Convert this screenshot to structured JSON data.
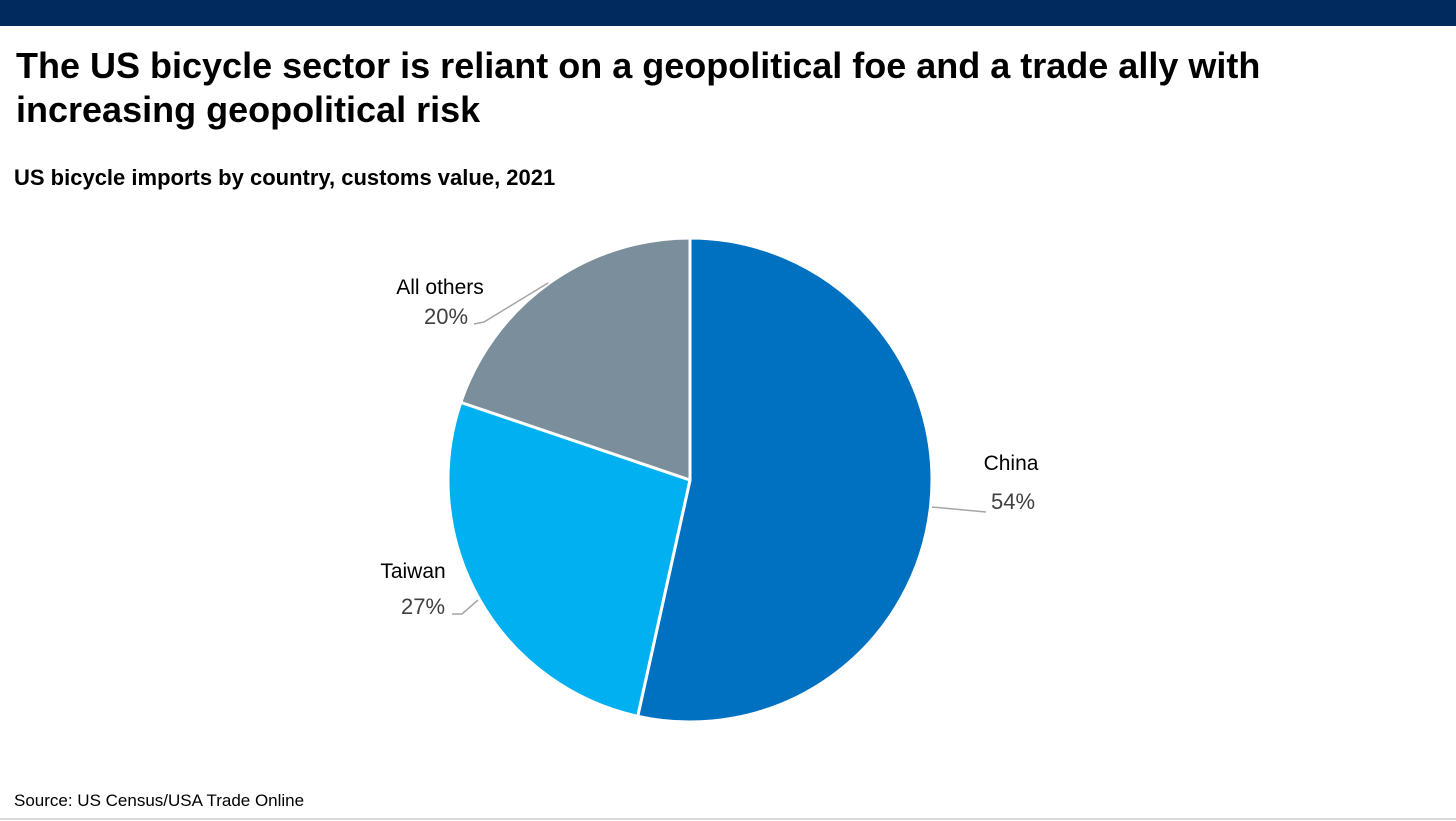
{
  "header": {
    "title": "The US bicycle sector is reliant on a geopolitical foe and a trade ally with increasing geopolitical risk",
    "bar_color": "#012a5e"
  },
  "chart_data": {
    "type": "pie",
    "title": "US bicycle imports by country, customs value, 2021",
    "categories": [
      "China",
      "Taiwan",
      "All others"
    ],
    "values": [
      54,
      27,
      20
    ],
    "labels": [
      "54%",
      "27%",
      "20%"
    ],
    "colors": [
      "#0070c0",
      "#00b0f0",
      "#7a8f9b"
    ],
    "start_angle": "12 o'clock",
    "direction": "clockwise",
    "legend": "none"
  },
  "footer": {
    "source": "Source: US Census/USA Trade Online"
  }
}
